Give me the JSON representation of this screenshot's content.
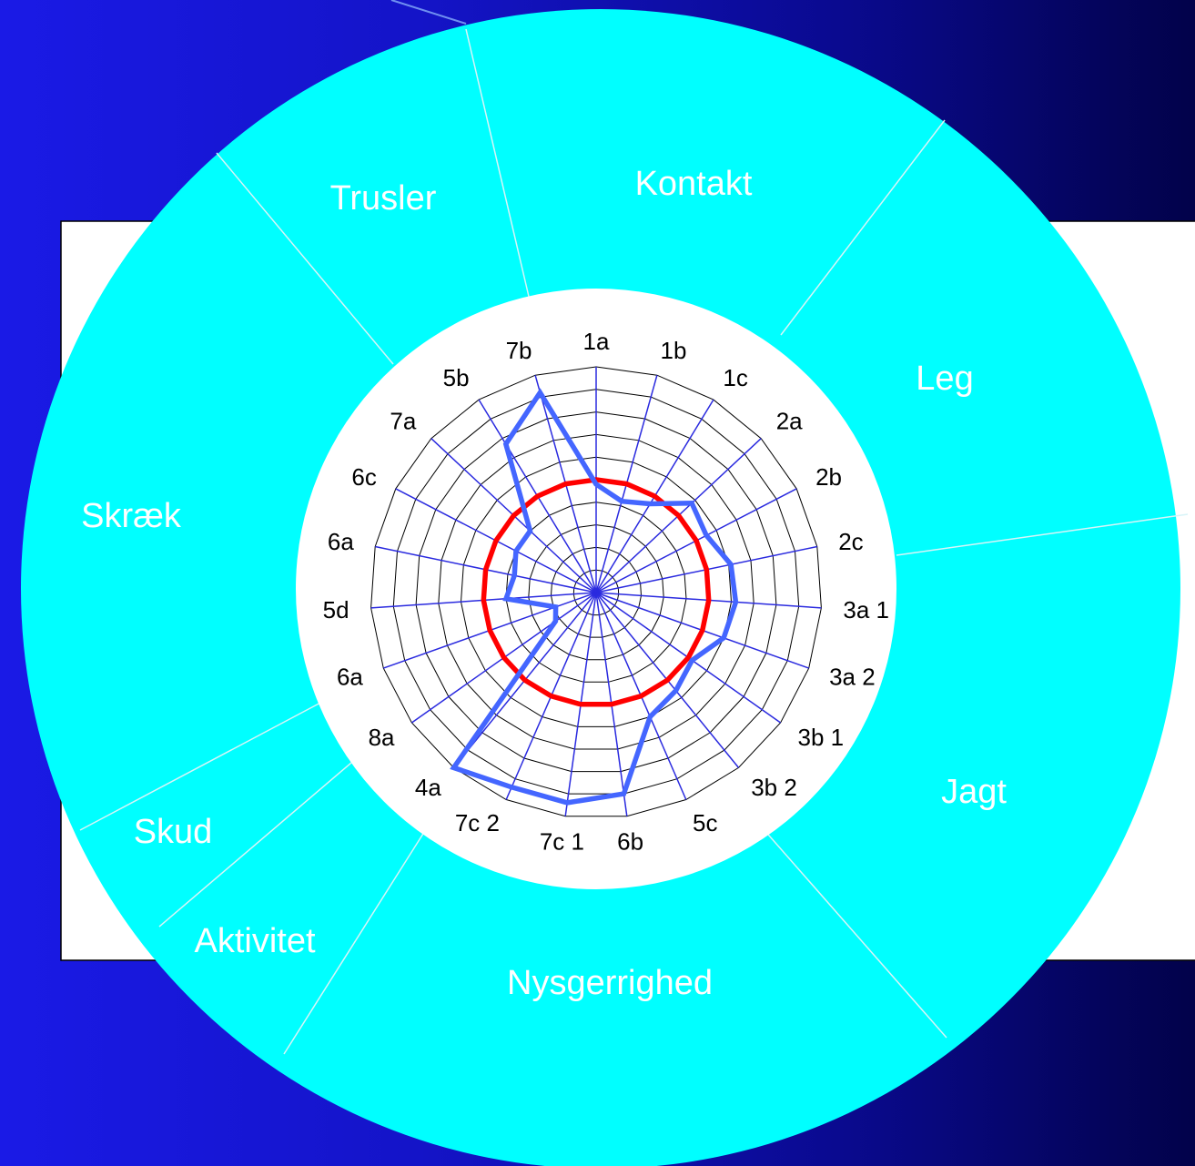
{
  "colors": {
    "ring": "#00ffff",
    "background_left": "#1a1ae6",
    "background_right": "#02024a",
    "reference_series": "#ff0000",
    "profile_series": "#4466ff",
    "spokes": "#2a2adf",
    "grid": "#000000"
  },
  "sectors": [
    {
      "label": "Kontakt"
    },
    {
      "label": "Leg"
    },
    {
      "label": "Jagt"
    },
    {
      "label": "Nysgerrighed"
    },
    {
      "label": "Aktivitet"
    },
    {
      "label": "Skud"
    },
    {
      "label": "Skræk"
    },
    {
      "label": "Trusler"
    }
  ],
  "chart_data": {
    "type": "radar",
    "grid_levels": 10,
    "rmax": 10,
    "axes": [
      "1a",
      "1b",
      "1c",
      "2a",
      "2b",
      "2c",
      "3a 1",
      "3a 2",
      "3b 1",
      "3b 2",
      "5c",
      "6b",
      "7c 1",
      "7c 2",
      "4a",
      "8a",
      "6a",
      "5d",
      "6a",
      "6c",
      "7a",
      "5b",
      "7b"
    ],
    "series": [
      {
        "color": "red",
        "values": [
          5,
          5,
          5,
          5,
          5,
          5,
          5,
          5,
          5,
          5,
          5,
          5,
          5,
          5,
          5,
          5,
          5,
          5,
          5,
          5,
          5,
          5,
          5
        ]
      },
      {
        "color": "blue",
        "values": [
          4.8,
          4.2,
          4.6,
          5.8,
          5.5,
          6.1,
          6.2,
          6,
          5.2,
          5.6,
          6,
          9,
          9.4,
          9.4,
          10,
          2.2,
          1.9,
          4,
          3.7,
          4,
          4,
          7.7,
          9.2
        ]
      }
    ]
  }
}
